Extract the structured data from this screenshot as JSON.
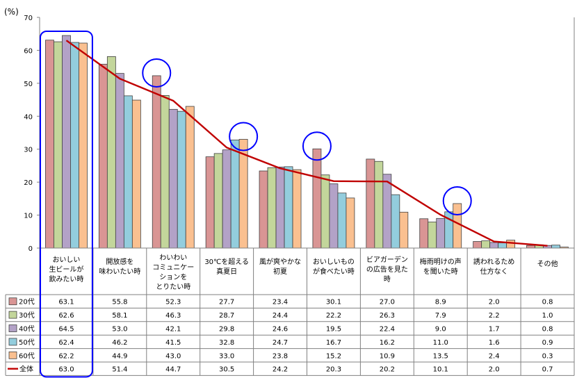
{
  "chart_data": {
    "type": "bar",
    "unit_label": "(%)",
    "ylim": [
      0,
      70
    ],
    "yticks": [
      0,
      10,
      20,
      30,
      40,
      50,
      60,
      70
    ],
    "grid": false,
    "legend": "table-left",
    "categories": [
      [
        "おいしい",
        "生ビールが",
        "飲みたい時"
      ],
      [
        "開放感を",
        "味わいたい時"
      ],
      [
        "わいわい",
        "コミュニケー",
        "ションを",
        "とりたい時"
      ],
      [
        "30℃を超える",
        "真夏日"
      ],
      [
        "風が爽やかな",
        "初夏"
      ],
      [
        "おいしいもの",
        "が食べたい時"
      ],
      [
        "ビアガーデン",
        "の広告を見た",
        "時"
      ],
      [
        "梅雨明けの声",
        "を聞いた時"
      ],
      [
        "誘われるため",
        "仕方なく"
      ],
      [
        "その他"
      ]
    ],
    "series": [
      {
        "name": "20代",
        "color": "#d99594",
        "values": [
          63.1,
          55.8,
          52.3,
          27.7,
          23.4,
          30.1,
          27.0,
          8.9,
          2.0,
          0.8
        ]
      },
      {
        "name": "30代",
        "color": "#c3d69b",
        "values": [
          62.6,
          58.1,
          46.3,
          28.7,
          24.4,
          22.2,
          26.3,
          7.9,
          2.2,
          1.0
        ]
      },
      {
        "name": "40代",
        "color": "#b3a2c7",
        "values": [
          64.5,
          53.0,
          42.1,
          29.8,
          24.6,
          19.5,
          22.4,
          9.0,
          1.7,
          0.8
        ]
      },
      {
        "name": "50代",
        "color": "#93cddd",
        "values": [
          62.4,
          46.2,
          41.5,
          32.8,
          24.7,
          16.7,
          16.2,
          11.0,
          1.6,
          0.9
        ]
      },
      {
        "name": "60代",
        "color": "#fac090",
        "values": [
          62.2,
          44.9,
          43.0,
          33.0,
          23.8,
          15.2,
          10.9,
          13.5,
          2.4,
          0.3
        ]
      }
    ],
    "total": {
      "name": "全体",
      "color": "#c00000",
      "values": [
        63.0,
        51.4,
        44.7,
        30.5,
        24.2,
        20.3,
        20.2,
        10.1,
        2.0,
        0.7
      ]
    },
    "display_values": [
      [
        "63.1",
        "55.8",
        "52.3",
        "27.7",
        "23.4",
        "30.1",
        "27.0",
        "8.9",
        "2.0",
        "0.8"
      ],
      [
        "62.6",
        "58.1",
        "46.3",
        "28.7",
        "24.4",
        "22.2",
        "26.3",
        "7.9",
        "2.2",
        "1.0"
      ],
      [
        "64.5",
        "53.0",
        "42.1",
        "29.8",
        "24.6",
        "19.5",
        "22.4",
        "9.0",
        "1.7",
        "0.8"
      ],
      [
        "62.4",
        "46.2",
        "41.5",
        "32.8",
        "24.7",
        "16.7",
        "16.2",
        "11.0",
        "1.6",
        "0.9"
      ],
      [
        "62.2",
        "44.9",
        "43.0",
        "33.0",
        "23.8",
        "15.2",
        "10.9",
        "13.5",
        "2.4",
        "0.3"
      ],
      [
        "63.0",
        "51.4",
        "44.7",
        "30.5",
        "24.2",
        "20.3",
        "20.2",
        "10.1",
        "2.0",
        "0.7"
      ]
    ],
    "highlight_color": "#0000ff",
    "circled_values": [
      {
        "category": 2,
        "series": 0
      },
      {
        "category": 3,
        "series": 4
      },
      {
        "category": 5,
        "series": 0
      },
      {
        "category": 7,
        "series": 4
      }
    ],
    "boxed_category": 0
  }
}
